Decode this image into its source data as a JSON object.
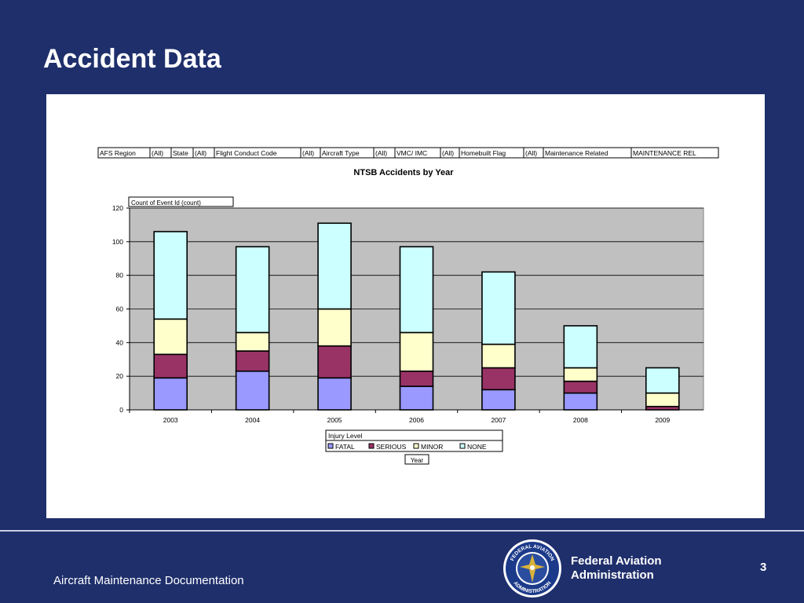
{
  "slide": {
    "title": "Accident Data",
    "footer_left": "Aircraft Maintenance Documentation",
    "faa_line1": "Federal Aviation",
    "faa_line2": "Administration",
    "page_number": "3",
    "seal_text_top": "FEDERAL AVIATION",
    "seal_text_bottom": "ADMINISTRATION"
  },
  "filters": [
    "AFS Region",
    "(All)",
    "State",
    "(All)",
    "Flight Conduct Code",
    "(All)",
    "Aircraft Type",
    "(All)",
    "VMC/ IMC",
    "(All)",
    "Homebuilt Flag",
    "(All)",
    "Maintenance Related",
    "MAINTENANCE REL"
  ],
  "chart_data": {
    "type": "bar",
    "stacked": true,
    "title": "NTSB Accidents by Year",
    "ylabel": "Count of Event Id (count)",
    "xlabel": "Year",
    "ylim": [
      0,
      120
    ],
    "yticks": [
      0,
      20,
      40,
      60,
      80,
      100,
      120
    ],
    "grid": true,
    "legend_title": "Injury Level",
    "legend_position": "bottom",
    "categories": [
      "2003",
      "2004",
      "2005",
      "2006",
      "2007",
      "2008",
      "2009"
    ],
    "series": [
      {
        "name": "FATAL",
        "color": "#9999ff",
        "values": [
          19,
          23,
          19,
          14,
          12,
          10,
          0
        ]
      },
      {
        "name": "SERIOUS",
        "color": "#993366",
        "values": [
          14,
          12,
          19,
          9,
          13,
          7,
          2
        ]
      },
      {
        "name": "MINOR",
        "color": "#ffffcc",
        "values": [
          21,
          11,
          22,
          23,
          14,
          8,
          8
        ]
      },
      {
        "name": "NONE",
        "color": "#ccffff",
        "values": [
          52,
          51,
          51,
          51,
          43,
          25,
          15
        ]
      }
    ],
    "plot_background": "#c0c0c0"
  }
}
